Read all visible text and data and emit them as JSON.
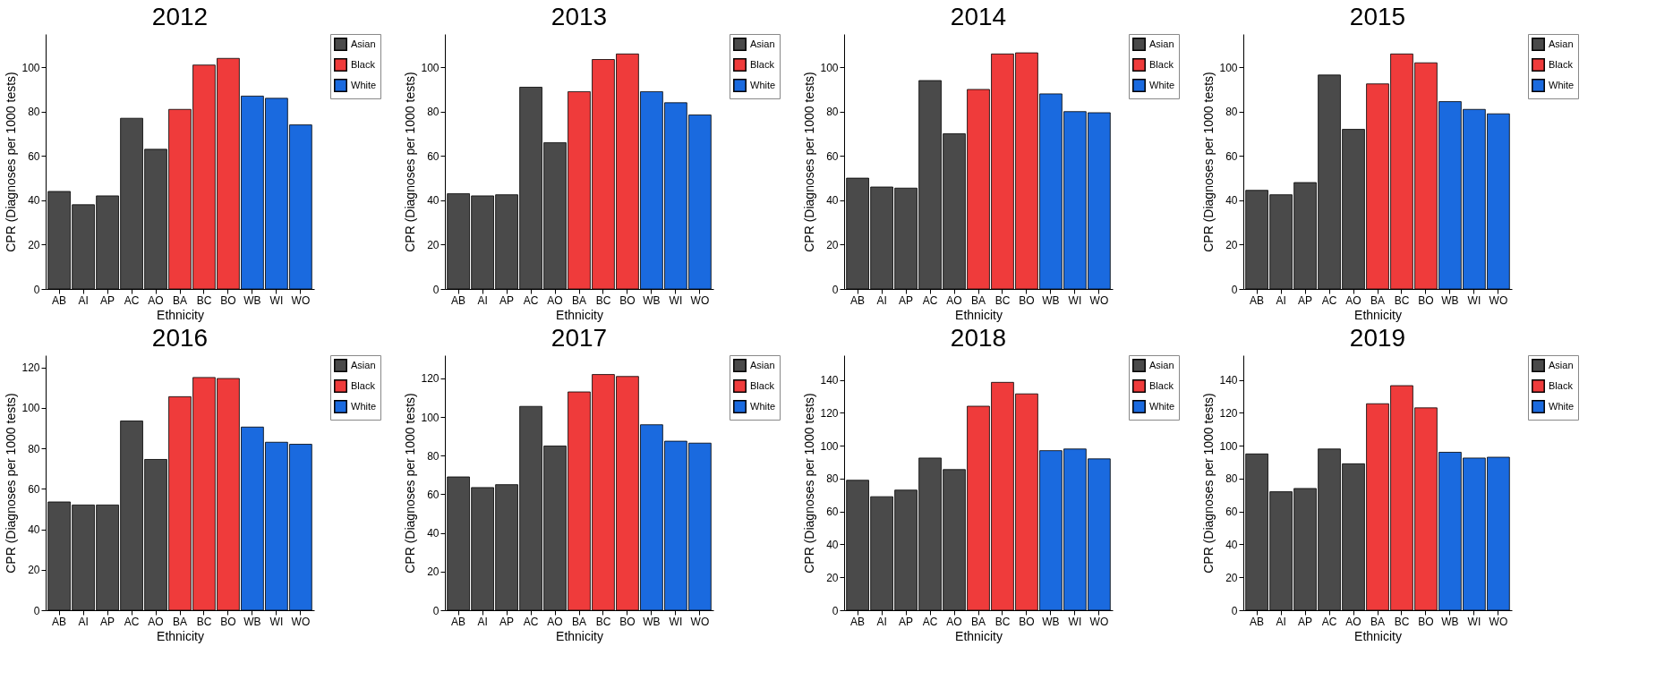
{
  "chart_data": [
    {
      "type": "bar",
      "title": "2012",
      "xlabel": "Ethnicity",
      "ylabel": "CPR (Diagnoses per 1000 tests)",
      "categories": [
        "AB",
        "AI",
        "AP",
        "AC",
        "AO",
        "BA",
        "BC",
        "BO",
        "WB",
        "WI",
        "WO"
      ],
      "ylim": [
        0,
        115
      ],
      "yticks": [
        0,
        20,
        40,
        60,
        80,
        100
      ],
      "legend": "top right",
      "series": [
        {
          "name": "Asian",
          "color": "#4a4a4a",
          "values": [
            44,
            38,
            42,
            77,
            63,
            null,
            null,
            null,
            null,
            null,
            null
          ]
        },
        {
          "name": "Black",
          "color": "#ef3b3b",
          "values": [
            null,
            null,
            null,
            null,
            null,
            81,
            101,
            104,
            null,
            null,
            null
          ]
        },
        {
          "name": "White",
          "color": "#1a6adf",
          "values": [
            null,
            null,
            null,
            null,
            null,
            null,
            null,
            null,
            87,
            86,
            74
          ]
        }
      ]
    },
    {
      "type": "bar",
      "title": "2013",
      "xlabel": "Ethnicity",
      "ylabel": "CPR (Diagnoses per 1000 tests)",
      "categories": [
        "AB",
        "AI",
        "AP",
        "AC",
        "AO",
        "BA",
        "BC",
        "BO",
        "WB",
        "WI",
        "WO"
      ],
      "ylim": [
        0,
        115
      ],
      "yticks": [
        0,
        20,
        40,
        60,
        80,
        100
      ],
      "legend": "top right",
      "series": [
        {
          "name": "Asian",
          "color": "#4a4a4a",
          "values": [
            43,
            42,
            42.5,
            91,
            66,
            null,
            null,
            null,
            null,
            null,
            null
          ]
        },
        {
          "name": "Black",
          "color": "#ef3b3b",
          "values": [
            null,
            null,
            null,
            null,
            null,
            89,
            103.5,
            106,
            null,
            null,
            null
          ]
        },
        {
          "name": "White",
          "color": "#1a6adf",
          "values": [
            null,
            null,
            null,
            null,
            null,
            null,
            null,
            null,
            89,
            84,
            78.5
          ]
        }
      ]
    },
    {
      "type": "bar",
      "title": "2014",
      "xlabel": "Ethnicity",
      "ylabel": "CPR (Diagnoses per 1000 tests)",
      "categories": [
        "AB",
        "AI",
        "AP",
        "AC",
        "AO",
        "BA",
        "BC",
        "BO",
        "WB",
        "WI",
        "WO"
      ],
      "ylim": [
        0,
        115
      ],
      "yticks": [
        0,
        20,
        40,
        60,
        80,
        100
      ],
      "legend": "top right",
      "series": [
        {
          "name": "Asian",
          "color": "#4a4a4a",
          "values": [
            50,
            46,
            45.5,
            94,
            70,
            null,
            null,
            null,
            null,
            null,
            null
          ]
        },
        {
          "name": "Black",
          "color": "#ef3b3b",
          "values": [
            null,
            null,
            null,
            null,
            null,
            90,
            106,
            106.5,
            null,
            null,
            null
          ]
        },
        {
          "name": "White",
          "color": "#1a6adf",
          "values": [
            null,
            null,
            null,
            null,
            null,
            null,
            null,
            null,
            88,
            80,
            79.5
          ]
        }
      ]
    },
    {
      "type": "bar",
      "title": "2015",
      "xlabel": "Ethnicity",
      "ylabel": "CPR (Diagnoses per 1000 tests)",
      "categories": [
        "AB",
        "AI",
        "AP",
        "AC",
        "AO",
        "BA",
        "BC",
        "BO",
        "WB",
        "WI",
        "WO"
      ],
      "ylim": [
        0,
        115
      ],
      "yticks": [
        0,
        20,
        40,
        60,
        80,
        100
      ],
      "legend": "top right",
      "series": [
        {
          "name": "Asian",
          "color": "#4a4a4a",
          "values": [
            44.5,
            42.5,
            48,
            96.5,
            72,
            null,
            null,
            null,
            null,
            null,
            null
          ]
        },
        {
          "name": "Black",
          "color": "#ef3b3b",
          "values": [
            null,
            null,
            null,
            null,
            null,
            92.5,
            106,
            102,
            null,
            null,
            null
          ]
        },
        {
          "name": "White",
          "color": "#1a6adf",
          "values": [
            null,
            null,
            null,
            null,
            null,
            null,
            null,
            null,
            84.5,
            81,
            79
          ]
        }
      ]
    },
    {
      "type": "bar",
      "title": "2016",
      "xlabel": "Ethnicity",
      "ylabel": "CPR (Diagnoses per 1000 tests)",
      "categories": [
        "AB",
        "AI",
        "AP",
        "AC",
        "AO",
        "BA",
        "BC",
        "BO",
        "WB",
        "WI",
        "WO"
      ],
      "ylim": [
        0,
        126
      ],
      "yticks": [
        0,
        20,
        40,
        60,
        80,
        100,
        120
      ],
      "legend": "top right",
      "series": [
        {
          "name": "Asian",
          "color": "#4a4a4a",
          "values": [
            53.5,
            52,
            52,
            93.5,
            74.5,
            null,
            null,
            null,
            null,
            null,
            null
          ]
        },
        {
          "name": "Black",
          "color": "#ef3b3b",
          "values": [
            null,
            null,
            null,
            null,
            null,
            105.5,
            115,
            114.5,
            null,
            null,
            null
          ]
        },
        {
          "name": "White",
          "color": "#1a6adf",
          "values": [
            null,
            null,
            null,
            null,
            null,
            null,
            null,
            null,
            90.5,
            83,
            82
          ]
        }
      ]
    },
    {
      "type": "bar",
      "title": "2017",
      "xlabel": "Ethnicity",
      "ylabel": "CPR (Diagnoses per 1000 tests)",
      "categories": [
        "AB",
        "AI",
        "AP",
        "AC",
        "AO",
        "BA",
        "BC",
        "BO",
        "WB",
        "WI",
        "WO"
      ],
      "ylim": [
        0,
        132
      ],
      "yticks": [
        0,
        20,
        40,
        60,
        80,
        100,
        120
      ],
      "legend": "top right",
      "series": [
        {
          "name": "Asian",
          "color": "#4a4a4a",
          "values": [
            69,
            63.5,
            65,
            105.5,
            85,
            null,
            null,
            null,
            null,
            null,
            null
          ]
        },
        {
          "name": "Black",
          "color": "#ef3b3b",
          "values": [
            null,
            null,
            null,
            null,
            null,
            113,
            122,
            121,
            null,
            null,
            null
          ]
        },
        {
          "name": "White",
          "color": "#1a6adf",
          "values": [
            null,
            null,
            null,
            null,
            null,
            null,
            null,
            null,
            96,
            87.5,
            86.5
          ]
        }
      ]
    },
    {
      "type": "bar",
      "title": "2018",
      "xlabel": "Ethnicity",
      "ylabel": "CPR (Diagnoses per 1000 tests)",
      "categories": [
        "AB",
        "AI",
        "AP",
        "AC",
        "AO",
        "BA",
        "BC",
        "BO",
        "WB",
        "WI",
        "WO"
      ],
      "ylim": [
        0,
        155
      ],
      "yticks": [
        0,
        20,
        40,
        60,
        80,
        100,
        120,
        140
      ],
      "legend": "top right",
      "series": [
        {
          "name": "Asian",
          "color": "#4a4a4a",
          "values": [
            79,
            69,
            73,
            92.5,
            85.5,
            null,
            null,
            null,
            null,
            null,
            null
          ]
        },
        {
          "name": "Black",
          "color": "#ef3b3b",
          "values": [
            null,
            null,
            null,
            null,
            null,
            124,
            138.5,
            131.5,
            null,
            null,
            null
          ]
        },
        {
          "name": "White",
          "color": "#1a6adf",
          "values": [
            null,
            null,
            null,
            null,
            null,
            null,
            null,
            null,
            97,
            98,
            92
          ]
        }
      ]
    },
    {
      "type": "bar",
      "title": "2019",
      "xlabel": "Ethnicity",
      "ylabel": "CPR (Diagnoses per 1000 tests)",
      "categories": [
        "AB",
        "AI",
        "AP",
        "AC",
        "AO",
        "BA",
        "BC",
        "BO",
        "WB",
        "WI",
        "WO"
      ],
      "ylim": [
        0,
        155
      ],
      "yticks": [
        0,
        20,
        40,
        60,
        80,
        100,
        120,
        140
      ],
      "legend": "top right",
      "series": [
        {
          "name": "Asian",
          "color": "#4a4a4a",
          "values": [
            95,
            72,
            74,
            98,
            89,
            null,
            null,
            null,
            null,
            null,
            null
          ]
        },
        {
          "name": "Black",
          "color": "#ef3b3b",
          "values": [
            null,
            null,
            null,
            null,
            null,
            125.5,
            136.5,
            123,
            null,
            null,
            null
          ]
        },
        {
          "name": "White",
          "color": "#1a6adf",
          "values": [
            null,
            null,
            null,
            null,
            null,
            null,
            null,
            null,
            96,
            92.5,
            93
          ]
        }
      ]
    }
  ]
}
